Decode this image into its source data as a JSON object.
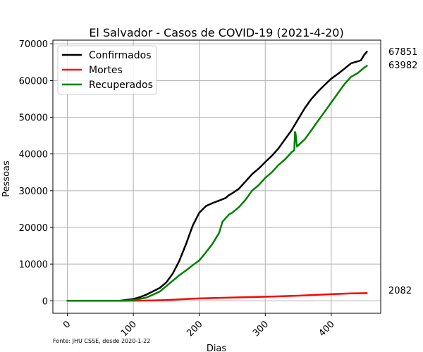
{
  "chart_data": {
    "type": "line",
    "title": "El Salvador - Casos de COVID-19 (2021-4-20)",
    "xlabel": "Dias",
    "ylabel": "Pessoas",
    "xlim": [
      -22,
      475
    ],
    "ylim": [
      -3400,
      71000
    ],
    "xticks": [
      0,
      100,
      200,
      300,
      400
    ],
    "yticks": [
      0,
      10000,
      20000,
      30000,
      40000,
      50000,
      60000,
      70000
    ],
    "xtick_labels": [
      "0",
      "100",
      "200",
      "300",
      "400"
    ],
    "ytick_labels": [
      "0",
      "10000",
      "20000",
      "30000",
      "40000",
      "50000",
      "60000",
      "70000"
    ],
    "grid": true,
    "legend_position": "upper-left",
    "source_note": "Fonte: JHU CSSE, desde 2020-1-22",
    "end_labels": [
      "67851",
      "63982",
      "2082"
    ],
    "series": [
      {
        "name": "Confirmados",
        "color": "#000000",
        "x": [
          0,
          60,
          80,
          100,
          110,
          120,
          130,
          140,
          150,
          160,
          170,
          180,
          190,
          200,
          210,
          220,
          230,
          240,
          245,
          250,
          260,
          265,
          270,
          280,
          290,
          300,
          310,
          320,
          330,
          340,
          350,
          360,
          370,
          380,
          390,
          400,
          410,
          420,
          430,
          440,
          445,
          450,
          454
        ],
        "values": [
          0,
          0,
          30,
          500,
          1000,
          1700,
          2600,
          3500,
          5000,
          7500,
          11000,
          15500,
          20500,
          24000,
          25800,
          26600,
          27300,
          28000,
          28800,
          29300,
          30500,
          31500,
          32500,
          34500,
          36000,
          37800,
          39500,
          41500,
          44000,
          46500,
          49500,
          52500,
          55000,
          57000,
          58800,
          60500,
          61800,
          63200,
          64700,
          65200,
          65500,
          67000,
          67851
        ]
      },
      {
        "name": "Mortes",
        "color": "#ff0000",
        "x": [
          0,
          90,
          130,
          150,
          200,
          250,
          300,
          350,
          400,
          430,
          454
        ],
        "values": [
          0,
          0,
          100,
          200,
          650,
          900,
          1100,
          1400,
          1800,
          2000,
          2082
        ]
      },
      {
        "name": "Recuperados",
        "color": "#008000",
        "x": [
          0,
          80,
          100,
          120,
          140,
          150,
          160,
          170,
          180,
          190,
          200,
          210,
          220,
          230,
          235,
          240,
          245,
          250,
          260,
          270,
          280,
          290,
          300,
          310,
          320,
          330,
          340,
          344,
          345,
          346,
          348,
          360,
          370,
          380,
          390,
          400,
          410,
          420,
          430,
          440,
          450,
          454
        ],
        "values": [
          0,
          0,
          200,
          900,
          2500,
          4000,
          5500,
          7000,
          8300,
          9700,
          11000,
          13200,
          15500,
          18500,
          21500,
          22500,
          23500,
          24000,
          25500,
          27500,
          30000,
          31500,
          33500,
          35000,
          37000,
          38500,
          40500,
          41000,
          46000,
          45500,
          42000,
          44000,
          46500,
          49000,
          51500,
          54000,
          56500,
          59000,
          61000,
          62000,
          63500,
          63982
        ]
      }
    ]
  }
}
